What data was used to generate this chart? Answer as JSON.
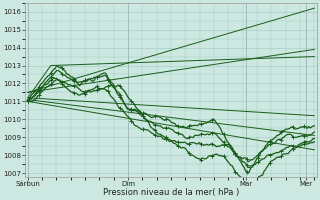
{
  "title": "Pression niveau de la mer( hPa )",
  "background_color": "#cce8e0",
  "grid_color": "#a0c8c0",
  "line_color": "#1a5c1a",
  "ylim": [
    1006.8,
    1016.5
  ],
  "yticks": [
    1007,
    1008,
    1009,
    1010,
    1011,
    1012,
    1013,
    1014,
    1015,
    1016
  ],
  "xtick_labels": [
    "Sárbun",
    "Dim",
    "Mar",
    "Mer"
  ],
  "xtick_positions": [
    0.0,
    0.35,
    0.76,
    0.97
  ],
  "plot_bgcolor": "#cce8e0"
}
